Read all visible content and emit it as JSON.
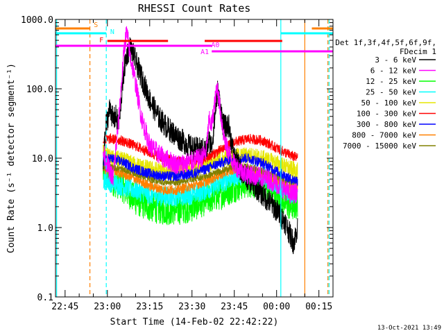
{
  "chart_data": {
    "type": "line",
    "title": "RHESSI Count Rates",
    "xlabel": "Start Time (14-Feb-02 22:42:22)",
    "ylabel": "Count Rate (s⁻¹ detector segment⁻¹)",
    "yscale": "log",
    "ylim": [
      0.1,
      1000
    ],
    "y_ticks": [
      {
        "value": 0.1,
        "label": "0.1"
      },
      {
        "value": 1,
        "label": "1.0"
      },
      {
        "value": 10,
        "label": "10.0"
      },
      {
        "value": 100,
        "label": "100.0"
      },
      {
        "value": 1000,
        "label": "1000.0"
      }
    ],
    "xlim_minutes": [
      -3.4,
      95
    ],
    "x_ticks": [
      {
        "minute": 0,
        "label": "22:45"
      },
      {
        "minute": 15,
        "label": "23:00"
      },
      {
        "minute": 30,
        "label": "23:15"
      },
      {
        "minute": 45,
        "label": "23:30"
      },
      {
        "minute": 60,
        "label": "23:45"
      },
      {
        "minute": 75,
        "label": "00:00"
      },
      {
        "minute": 90,
        "label": "00:15"
      }
    ],
    "legend": {
      "placement": "right",
      "header": [
        "Det 1f,3f,4f,5f,6f,9f,",
        "FDecim 1"
      ],
      "entries": [
        {
          "label": "3 - 6 keV",
          "color": "#000000"
        },
        {
          "label": "6 - 12 keV",
          "color": "#ff00ff"
        },
        {
          "label": "12 - 25 keV",
          "color": "#00ff00"
        },
        {
          "label": "25 - 50 keV",
          "color": "#00ffff"
        },
        {
          "label": "50 - 100 keV",
          "color": "#e6e600"
        },
        {
          "label": "100 - 300 keV",
          "color": "#ff0000"
        },
        {
          "label": "300 - 800 keV",
          "color": "#0000ff"
        },
        {
          "label": "800 - 7000 keV",
          "color": "#ff8000"
        },
        {
          "label": "7000 - 15000 keV",
          "color": "#808000"
        }
      ]
    },
    "flag_bars": [
      {
        "label": "S",
        "color": "#ff8000",
        "row": 1,
        "segments": [
          [
            -3.4,
            8.8
          ],
          [
            87.5,
            95
          ]
        ]
      },
      {
        "label": "N",
        "color": "#00ffff",
        "row": 2,
        "segments": [
          [
            -3.4,
            14.6
          ],
          [
            76.5,
            95
          ]
        ]
      },
      {
        "label": "F",
        "color": "#ff0000",
        "row": 3,
        "segments": [
          [
            15,
            36.5
          ],
          [
            49.5,
            77
          ]
        ]
      },
      {
        "label": "A0",
        "color": "#ff00ff",
        "row": 4,
        "segments": [
          [
            -3.4,
            52
          ]
        ]
      },
      {
        "label": "A1",
        "color": "#ff00ff",
        "row": 5,
        "segments": [
          [
            52,
            95
          ]
        ]
      }
    ],
    "vertical_lines": [
      {
        "minute": -3.0,
        "color": "#00ffff",
        "style": "solid"
      },
      {
        "minute": 8.8,
        "color": "#ff8000",
        "style": "dashed"
      },
      {
        "minute": 14.6,
        "color": "#00ffff",
        "style": "dashed"
      },
      {
        "minute": 76.5,
        "color": "#00ffff",
        "style": "solid"
      },
      {
        "minute": 85.0,
        "color": "#ff8000",
        "style": "solid"
      },
      {
        "minute": 93.2,
        "color": "#ff8000",
        "style": "dashed"
      },
      {
        "minute": 93.6,
        "color": "#00ffff",
        "style": "dashed"
      }
    ],
    "series": [
      {
        "name": "3 - 6 keV",
        "color": "#000000",
        "noise": 0.35,
        "points": [
          [
            13.5,
            8
          ],
          [
            14.5,
            30
          ],
          [
            16,
            55
          ],
          [
            17,
            35
          ],
          [
            18,
            40
          ],
          [
            19,
            30
          ],
          [
            20,
            80
          ],
          [
            21,
            200
          ],
          [
            22,
            320
          ],
          [
            23,
            390
          ],
          [
            24,
            330
          ],
          [
            25,
            250
          ],
          [
            27,
            150
          ],
          [
            30,
            70
          ],
          [
            33,
            40
          ],
          [
            36,
            28
          ],
          [
            40,
            20
          ],
          [
            45,
            14
          ],
          [
            50,
            13
          ],
          [
            51,
            18
          ],
          [
            52,
            15
          ],
          [
            53,
            35
          ],
          [
            54,
            95
          ],
          [
            55,
            60
          ],
          [
            56,
            30
          ],
          [
            57,
            28
          ],
          [
            58,
            30
          ],
          [
            60,
            10
          ],
          [
            63,
            6
          ],
          [
            66,
            4.5
          ],
          [
            70,
            3
          ],
          [
            74,
            2
          ],
          [
            78,
            1.2
          ],
          [
            81,
            0.6
          ],
          [
            82.5,
            1.0
          ]
        ]
      },
      {
        "name": "6 - 12 keV",
        "color": "#ff00ff",
        "noise": 0.3,
        "points": [
          [
            13.5,
            12
          ],
          [
            15,
            8
          ],
          [
            17,
            5
          ],
          [
            19,
            35
          ],
          [
            20,
            120
          ],
          [
            21,
            400
          ],
          [
            21.8,
            650
          ],
          [
            22.5,
            450
          ],
          [
            23,
            300
          ],
          [
            24,
            200
          ],
          [
            25,
            120
          ],
          [
            27,
            40
          ],
          [
            30,
            15
          ],
          [
            35,
            10
          ],
          [
            40,
            8
          ],
          [
            45,
            9
          ],
          [
            48,
            10
          ],
          [
            50,
            12
          ],
          [
            51,
            35
          ],
          [
            52,
            30
          ],
          [
            53,
            60
          ],
          [
            54,
            110
          ],
          [
            55,
            50
          ],
          [
            56,
            25
          ],
          [
            57,
            15
          ],
          [
            60,
            8
          ],
          [
            64,
            6
          ],
          [
            68,
            5.5
          ],
          [
            72,
            5
          ],
          [
            76,
            4
          ],
          [
            80,
            3
          ],
          [
            82.5,
            3.2
          ]
        ]
      },
      {
        "name": "12 - 25 keV",
        "color": "#00ff00",
        "noise": 0.45,
        "points": [
          [
            13.5,
            6
          ],
          [
            16,
            5
          ],
          [
            20,
            4
          ],
          [
            25,
            2.5
          ],
          [
            30,
            2
          ],
          [
            35,
            1.8
          ],
          [
            40,
            1.8
          ],
          [
            45,
            2
          ],
          [
            50,
            2.5
          ],
          [
            55,
            3
          ],
          [
            60,
            3.8
          ],
          [
            65,
            4.5
          ],
          [
            70,
            4.2
          ],
          [
            75,
            3
          ],
          [
            80,
            2
          ],
          [
            82.5,
            2.2
          ]
        ]
      },
      {
        "name": "25 - 50 keV",
        "color": "#00ffff",
        "noise": 0.3,
        "points": [
          [
            13.5,
            5
          ],
          [
            16,
            4.5
          ],
          [
            20,
            4
          ],
          [
            25,
            3.5
          ],
          [
            30,
            3
          ],
          [
            35,
            2.8
          ],
          [
            40,
            2.8
          ],
          [
            45,
            3
          ],
          [
            50,
            3.5
          ],
          [
            55,
            4.3
          ],
          [
            60,
            5.5
          ],
          [
            65,
            6
          ],
          [
            70,
            5.5
          ],
          [
            75,
            4.2
          ],
          [
            80,
            3.2
          ],
          [
            82.5,
            3
          ]
        ]
      },
      {
        "name": "50 - 100 keV",
        "color": "#e6e600",
        "noise": 0.25,
        "points": [
          [
            13.5,
            12
          ],
          [
            16,
            10
          ],
          [
            20,
            9.5
          ],
          [
            25,
            8
          ],
          [
            30,
            7
          ],
          [
            35,
            6.5
          ],
          [
            40,
            6.8
          ],
          [
            45,
            7.2
          ],
          [
            50,
            8
          ],
          [
            55,
            9.5
          ],
          [
            60,
            10.5
          ],
          [
            65,
            11
          ],
          [
            70,
            10
          ],
          [
            75,
            8.5
          ],
          [
            80,
            7
          ],
          [
            82.5,
            6.5
          ]
        ]
      },
      {
        "name": "100 - 300 keV",
        "color": "#ff0000",
        "noise": 0.15,
        "points": [
          [
            13.5,
            18
          ],
          [
            16,
            19
          ],
          [
            20,
            18
          ],
          [
            25,
            15
          ],
          [
            30,
            12
          ],
          [
            35,
            10
          ],
          [
            40,
            9
          ],
          [
            45,
            9
          ],
          [
            50,
            10
          ],
          [
            55,
            13
          ],
          [
            60,
            17
          ],
          [
            65,
            19
          ],
          [
            70,
            18
          ],
          [
            75,
            14
          ],
          [
            80,
            11
          ],
          [
            82.5,
            10
          ]
        ]
      },
      {
        "name": "300 - 800 keV",
        "color": "#0000ff",
        "noise": 0.15,
        "points": [
          [
            13.5,
            9
          ],
          [
            16,
            10
          ],
          [
            20,
            9
          ],
          [
            25,
            7
          ],
          [
            30,
            6
          ],
          [
            35,
            5.5
          ],
          [
            40,
            5.5
          ],
          [
            45,
            6
          ],
          [
            50,
            7
          ],
          [
            55,
            8.5
          ],
          [
            60,
            10
          ],
          [
            65,
            10
          ],
          [
            70,
            8.5
          ],
          [
            75,
            6.5
          ],
          [
            80,
            5
          ],
          [
            82.5,
            4.8
          ]
        ]
      },
      {
        "name": "800 - 7000 keV",
        "color": "#ff8000",
        "noise": 0.15,
        "points": [
          [
            13.5,
            6.5
          ],
          [
            16,
            7
          ],
          [
            20,
            6
          ],
          [
            25,
            5
          ],
          [
            30,
            4
          ],
          [
            35,
            3.5
          ],
          [
            40,
            3.5
          ],
          [
            45,
            4
          ],
          [
            50,
            4.6
          ],
          [
            55,
            5.8
          ],
          [
            60,
            7
          ],
          [
            65,
            7
          ],
          [
            70,
            6
          ],
          [
            75,
            4.8
          ],
          [
            80,
            3.8
          ],
          [
            82.5,
            3.8
          ]
        ]
      },
      {
        "name": "7000 - 15000 keV",
        "color": "#808000",
        "noise": 0.1,
        "points": [
          [
            13.5,
            7
          ],
          [
            16,
            7.5
          ],
          [
            20,
            7
          ],
          [
            25,
            6
          ],
          [
            30,
            5
          ],
          [
            35,
            4.5
          ],
          [
            40,
            4.5
          ],
          [
            45,
            5
          ],
          [
            50,
            5.5
          ],
          [
            55,
            6.5
          ],
          [
            60,
            7.5
          ],
          [
            65,
            7.5
          ],
          [
            70,
            6.5
          ],
          [
            75,
            5.5
          ],
          [
            80,
            4.5
          ],
          [
            82.5,
            4.3
          ]
        ]
      }
    ]
  },
  "footer": {
    "timestamp": "13-Oct-2021 13:49"
  }
}
